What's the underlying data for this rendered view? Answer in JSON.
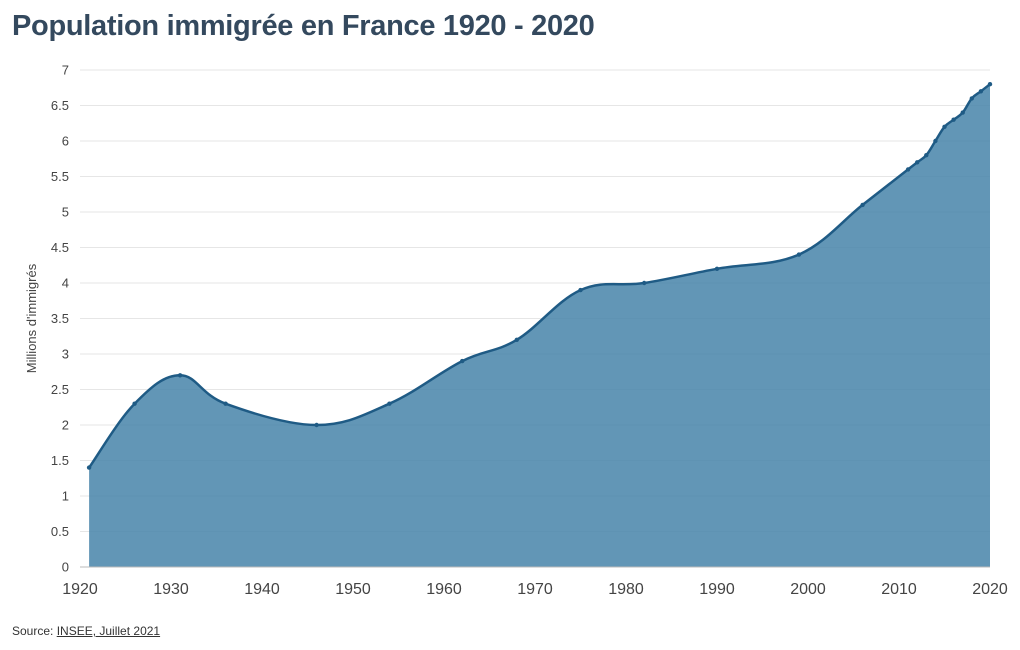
{
  "title": "Population immigrée en France 1920 - 2020",
  "source": {
    "prefix": "Source: ",
    "link_text": "INSEE, Juillet 2021"
  },
  "colors": {
    "area": "#4b86ab",
    "line": "#1f5b85",
    "grid": "#e6e6e6"
  },
  "chart_data": {
    "type": "area",
    "title": "Population immigrée en France 1920 - 2020",
    "xlabel": "",
    "ylabel": "Millions d'immigrés",
    "xlim": [
      1920,
      2020
    ],
    "ylim": [
      0,
      7
    ],
    "x_ticks": [
      1920,
      1930,
      1940,
      1950,
      1960,
      1970,
      1980,
      1990,
      2000,
      2010,
      2020
    ],
    "y_ticks": [
      0,
      0.5,
      1,
      1.5,
      2,
      2.5,
      3,
      3.5,
      4,
      4.5,
      5,
      5.5,
      6,
      6.5,
      7
    ],
    "grid": true,
    "series": [
      {
        "points": [
          [
            1921,
            1.4
          ],
          [
            1926,
            2.3
          ],
          [
            1931,
            2.7
          ],
          [
            1936,
            2.3
          ],
          [
            1946,
            2.0
          ],
          [
            1954,
            2.3
          ],
          [
            1962,
            2.9
          ],
          [
            1968,
            3.2
          ],
          [
            1975,
            3.9
          ],
          [
            1982,
            4.0
          ],
          [
            1990,
            4.2
          ],
          [
            1999,
            4.4
          ],
          [
            2006,
            5.1
          ],
          [
            2011,
            5.6
          ],
          [
            2012,
            5.7
          ],
          [
            2013,
            5.8
          ],
          [
            2014,
            6.0
          ],
          [
            2015,
            6.2
          ],
          [
            2016,
            6.3
          ],
          [
            2017,
            6.4
          ],
          [
            2018,
            6.6
          ],
          [
            2019,
            6.7
          ],
          [
            2020,
            6.8
          ]
        ]
      }
    ]
  }
}
